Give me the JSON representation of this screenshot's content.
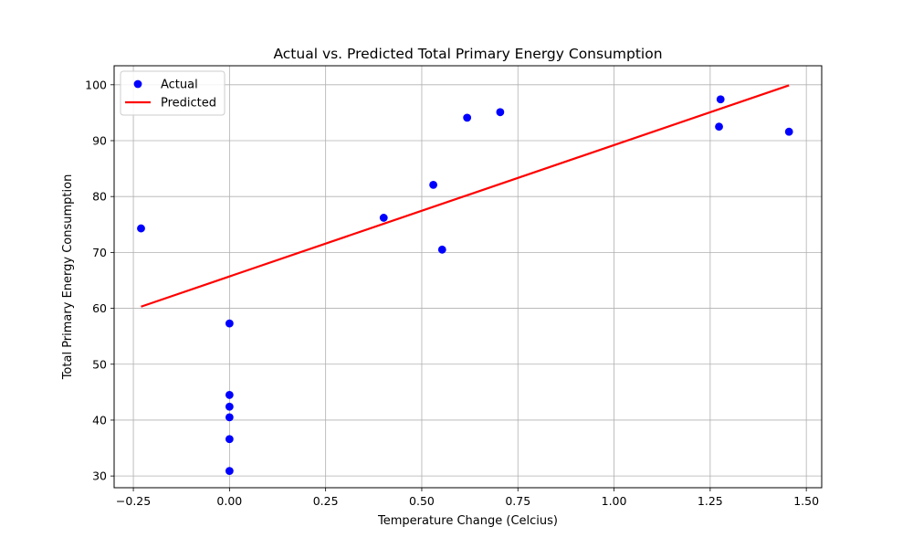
{
  "chart_data": {
    "type": "scatter",
    "title": "Actual vs. Predicted Total Primary Energy Consumption",
    "xlabel": "Temperature Change (Celcius)",
    "ylabel": "Total Primary Energy Consumption",
    "xlim": [
      -0.3,
      1.54
    ],
    "ylim": [
      27.9,
      103.4
    ],
    "x_ticks": [
      -0.25,
      0.0,
      0.25,
      0.5,
      0.75,
      1.0,
      1.25,
      1.5
    ],
    "x_tick_labels": [
      "−0.25",
      "0.00",
      "0.25",
      "0.50",
      "0.75",
      "1.00",
      "1.25",
      "1.50"
    ],
    "y_ticks": [
      30,
      40,
      50,
      60,
      70,
      80,
      90,
      100
    ],
    "y_tick_labels": [
      "30",
      "40",
      "50",
      "60",
      "70",
      "80",
      "90",
      "100"
    ],
    "grid": true,
    "legend_position": "top-left",
    "series": [
      {
        "name": "Actual",
        "kind": "scatter",
        "color": "#0000ff",
        "points": [
          [
            -0.23,
            74.3
          ],
          [
            0.0,
            57.3
          ],
          [
            0.0,
            44.5
          ],
          [
            0.0,
            42.4
          ],
          [
            0.0,
            40.5
          ],
          [
            0.0,
            36.6
          ],
          [
            0.0,
            30.9
          ],
          [
            0.401,
            76.2
          ],
          [
            0.53,
            82.1
          ],
          [
            0.553,
            70.5
          ],
          [
            0.618,
            94.1
          ],
          [
            0.704,
            95.1
          ],
          [
            1.273,
            92.5
          ],
          [
            1.277,
            97.4
          ],
          [
            1.455,
            91.6
          ]
        ]
      },
      {
        "name": "Predicted",
        "kind": "line",
        "color": "#ff0000",
        "points": [
          [
            -0.23,
            60.3
          ],
          [
            1.455,
            99.9
          ]
        ]
      }
    ]
  }
}
